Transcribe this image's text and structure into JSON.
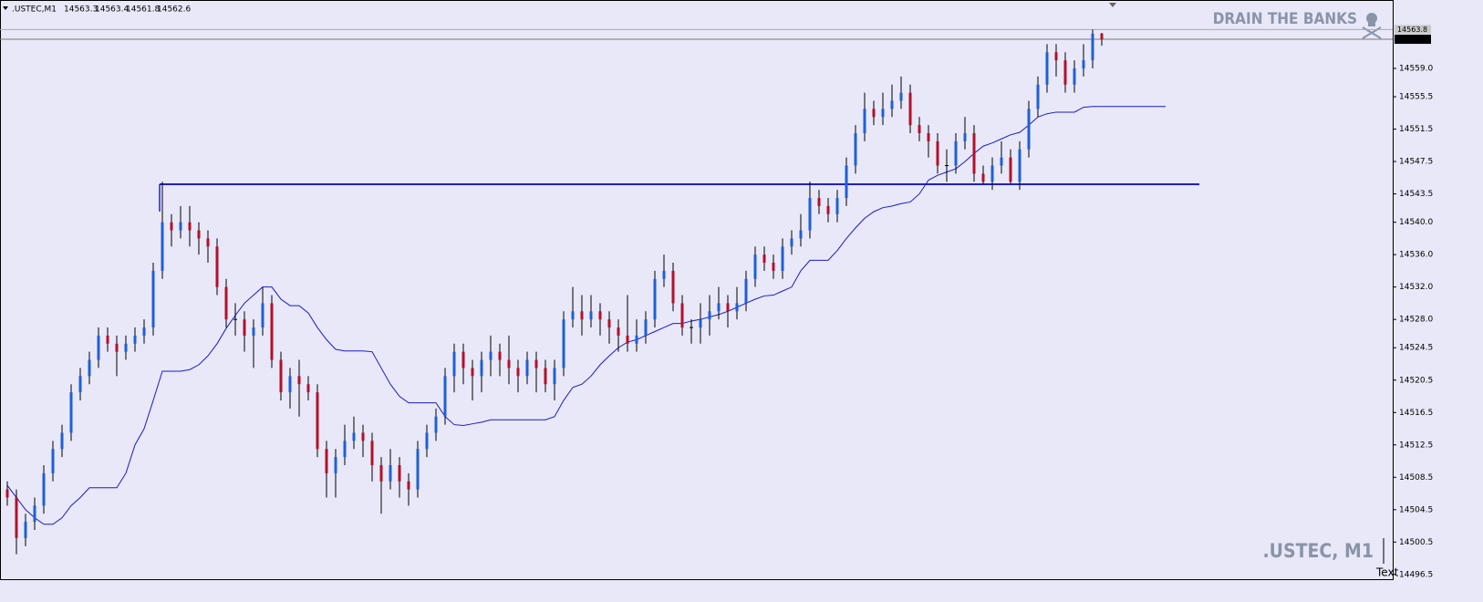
{
  "chart_data": {
    "type": "candlestick",
    "symbol": ".USTEC,M1",
    "watermark_top": "DRAIN THE BANKS",
    "watermark_bottom": ".USTEC, M1",
    "corner_text": "Text",
    "bull_color": "#1f5fd6",
    "bear_color": "#b4102a",
    "wick_color": "#000000",
    "ylim": [
      14495.8,
      14567.45
    ],
    "yticks": [
      {
        "value": 14559,
        "label": "14559.0"
      },
      14555.5,
      14551.5,
      14547.5,
      14543.5,
      {
        "value": 14540,
        "label": "14540.0"
      },
      {
        "value": 14536,
        "label": "14536.0"
      },
      {
        "value": 14532,
        "label": "14532.0"
      },
      {
        "value": 14528,
        "label": "14528.0"
      },
      14524.5,
      14520.5,
      14516.5,
      14512.5,
      14508.5,
      14504.5,
      14500.5,
      14496.5
    ],
    "price_lines": [
      14563.8,
      14562.6
    ],
    "open": [
      14507,
      14506,
      14501,
      14503,
      14505,
      14509,
      14512,
      14514,
      14519,
      14521,
      14523,
      14526,
      14525,
      14524,
      14525,
      14526,
      14527,
      14534,
      14540,
      14539,
      14540,
      14539,
      14538,
      14537,
      14532,
      14528,
      14528,
      14526,
      14527,
      14530,
      14523,
      14519,
      14521,
      14520,
      14519,
      14512,
      14509,
      14511,
      14513,
      14514,
      14513,
      14510,
      14508,
      14510,
      14508,
      14507,
      14512,
      14514,
      14516,
      14521,
      14524,
      14522,
      14521,
      14523,
      14524,
      14523,
      14522,
      14521,
      14523,
      14522,
      14520,
      14522,
      14528,
      14529,
      14528,
      14529,
      14528,
      14527,
      14526,
      14525,
      14526,
      14528,
      14533,
      14534,
      14530,
      14527,
      14527,
      14528,
      14529,
      14530,
      14529,
      14530,
      14533,
      14536,
      14535,
      14534,
      14537,
      14538,
      14539,
      14543,
      14542,
      14541,
      14543,
      14547,
      14551,
      14554,
      14553,
      14554,
      14555,
      14556,
      14552,
      14551,
      14550,
      14547,
      14547,
      14550,
      14551,
      14546,
      14545,
      14547,
      14548,
      14545,
      14549,
      14554,
      14557,
      14561,
      14560,
      14557,
      14559,
      14560,
      14563.3
    ],
    "high": [
      14508,
      14507,
      14504,
      14506,
      14510,
      14513,
      14515,
      14520,
      14522,
      14524,
      14527,
      14527,
      14526,
      14526,
      14527,
      14528,
      14535,
      14545,
      14541,
      14542,
      14542,
      14540,
      14539,
      14538,
      14533,
      14530,
      14529,
      14528,
      14532,
      14531,
      14524,
      14522,
      14523,
      14521,
      14520,
      14513,
      14512,
      14515,
      14516,
      14515,
      14514,
      14511,
      14512,
      14511,
      14509,
      14513,
      14515,
      14517,
      14522,
      14525,
      14525,
      14523,
      14524,
      14526,
      14525,
      14526,
      14523,
      14524,
      14524,
      14523,
      14523,
      14529,
      14532,
      14531,
      14531,
      14530,
      14529,
      14528,
      14531,
      14528,
      14529,
      14534,
      14536,
      14535,
      14531,
      14528,
      14530,
      14531,
      14532,
      14531,
      14532,
      14534,
      14537,
      14537,
      14536,
      14538,
      14539,
      14541,
      14545,
      14544,
      14543,
      14544,
      14548,
      14552,
      14556,
      14555,
      14556,
      14557,
      14558,
      14557,
      14553,
      14552,
      14551,
      14549,
      14551,
      14553,
      14552,
      14547,
      14548,
      14550,
      14549,
      14550,
      14555,
      14558,
      14562,
      14562,
      14561,
      14560,
      14562,
      14563.8,
      14563.4
    ],
    "low": [
      14505,
      14499,
      14500,
      14502,
      14504,
      14508,
      14511,
      14513,
      14518,
      14520,
      14522,
      14524,
      14521,
      14523,
      14524,
      14525,
      14526,
      14533,
      14537,
      14538,
      14537,
      14536,
      14535,
      14531,
      14527,
      14526,
      14524,
      14522,
      14526,
      14522,
      14518,
      14517,
      14516,
      14518,
      14511,
      14506,
      14506,
      14510,
      14512,
      14511,
      14508,
      14504,
      14507,
      14506,
      14505,
      14506,
      14511,
      14513,
      14515,
      14519,
      14520,
      14518,
      14519,
      14521,
      14521,
      14520,
      14519,
      14520,
      14519,
      14519,
      14518,
      14521,
      14527,
      14526,
      14527,
      14526,
      14525,
      14524,
      14524,
      14524,
      14525,
      14527,
      14532,
      14529,
      14526,
      14525,
      14525,
      14526,
      14528,
      14527,
      14528,
      14529,
      14532,
      14534,
      14533,
      14533,
      14536,
      14537,
      14538,
      14541,
      14540,
      14540,
      14542,
      14546,
      14550,
      14552,
      14552,
      14553,
      14554,
      14551,
      14550,
      14548,
      14546,
      14545,
      14546,
      14549,
      14545,
      14544.7,
      14544,
      14546,
      14544.8,
      14544,
      14548,
      14553,
      14556,
      14558,
      14556,
      14556,
      14558,
      14559,
      14561.8
    ],
    "close": [
      14506,
      14501,
      14503,
      14505,
      14509,
      14512,
      14514,
      14519,
      14521,
      14523,
      14526,
      14525,
      14524,
      14525,
      14526,
      14527,
      14534,
      14540,
      14539,
      14540,
      14539,
      14538,
      14537,
      14532,
      14528,
      14528,
      14526,
      14527,
      14530,
      14523,
      14519,
      14521,
      14520,
      14519,
      14512,
      14509,
      14511,
      14513,
      14514,
      14513,
      14510,
      14508,
      14510,
      14508,
      14507,
      14512,
      14514,
      14516,
      14521,
      14524,
      14522,
      14521,
      14523,
      14524,
      14523,
      14522,
      14521,
      14523,
      14522,
      14520,
      14522,
      14528,
      14529,
      14528,
      14529,
      14528,
      14527,
      14526,
      14525,
      14526,
      14528,
      14533,
      14534,
      14530,
      14527,
      14527,
      14528,
      14529,
      14530,
      14529,
      14530,
      14533,
      14536,
      14535,
      14534,
      14537,
      14538,
      14539,
      14543,
      14542,
      14541,
      14543,
      14547,
      14551,
      14554,
      14553,
      14554,
      14555,
      14556,
      14552,
      14551,
      14550,
      14547,
      14547,
      14550,
      14551,
      14546,
      14545,
      14547,
      14548,
      14545,
      14549,
      14554,
      14557,
      14561,
      14560,
      14557,
      14559,
      14560,
      14563.3,
      14562.6
    ],
    "indicator": {
      "color": "#1a1acc",
      "values": [
        14507.5,
        14506,
        14504.5,
        14503.5,
        14502.7,
        14502.7,
        14503.5,
        14505,
        14506,
        14507.2,
        14507.2,
        14507.2,
        14507.2,
        14509,
        14512.5,
        14514.5,
        14518,
        14521.6,
        14521.6,
        14521.6,
        14521.8,
        14522.4,
        14523.5,
        14525,
        14526.9,
        14528.5,
        14530,
        14531,
        14532,
        14532,
        14530.5,
        14529.7,
        14529.7,
        14528.8,
        14527,
        14525.5,
        14524.3,
        14524.1,
        14524.1,
        14524.1,
        14524,
        14522,
        14520,
        14518.5,
        14517.7,
        14517.7,
        14517.7,
        14517.7,
        14516,
        14515,
        14514.9,
        14515.1,
        14515.3,
        14515.6,
        14515.6,
        14515.6,
        14515.6,
        14515.6,
        14515.6,
        14515.6,
        14516,
        14518,
        14519.6,
        14520,
        14521,
        14522.4,
        14523.5,
        14524.5,
        14525.2,
        14525.5,
        14526,
        14526.5,
        14527,
        14527.5,
        14527.5,
        14527.8,
        14528,
        14528.3,
        14528.6,
        14529,
        14529.5,
        14530,
        14530.5,
        14530.9,
        14531,
        14531.5,
        14532,
        14534,
        14535.3,
        14535.3,
        14535.3,
        14536.5,
        14538,
        14539.3,
        14540.5,
        14541.3,
        14541.8,
        14542,
        14542.3,
        14542.5,
        14543.5,
        14545.2,
        14545.8,
        14546.2,
        14546.6,
        14547.5,
        14548.5,
        14549.4,
        14549.8,
        14550.3,
        14550.8,
        14551.1,
        14552,
        14553,
        14553.4,
        14553.6,
        14553.6,
        14553.6,
        14554.2,
        14554.3,
        14554.3,
        14554.3,
        14554.3,
        14554.3,
        14554.3,
        14554.3,
        14554.3,
        14554.3
      ]
    },
    "hline": {
      "value": 14544.7,
      "color": "#1f1fd0"
    }
  }
}
